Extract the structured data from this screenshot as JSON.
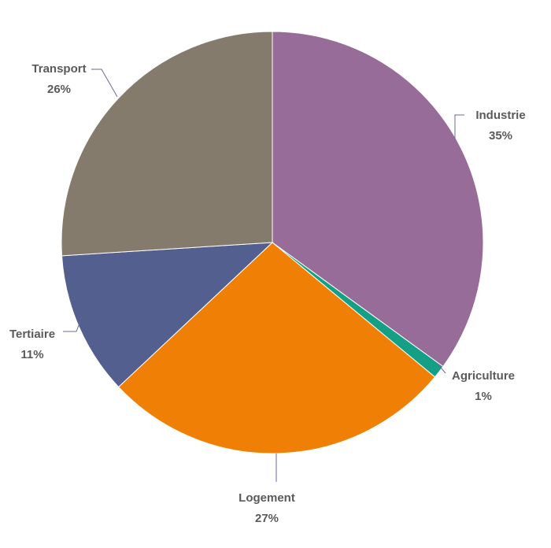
{
  "chart_data": {
    "type": "pie",
    "title": "",
    "slices": [
      {
        "name": "Industrie",
        "value": 35,
        "label": "35%",
        "color": "#986c98"
      },
      {
        "name": "Agriculture",
        "value": 1,
        "label": "1%",
        "color": "#15a085"
      },
      {
        "name": "Logement",
        "value": 27,
        "label": "27%",
        "color": "#ef8005"
      },
      {
        "name": "Tertiaire",
        "value": 11,
        "label": "11%",
        "color": "#525f8f"
      },
      {
        "name": "Transport",
        "value": 26,
        "label": "26%",
        "color": "#857b6d"
      }
    ],
    "start": "12 o'clock",
    "direction": "clockwise",
    "legend": "none (labels outside slices with leader lines)"
  }
}
